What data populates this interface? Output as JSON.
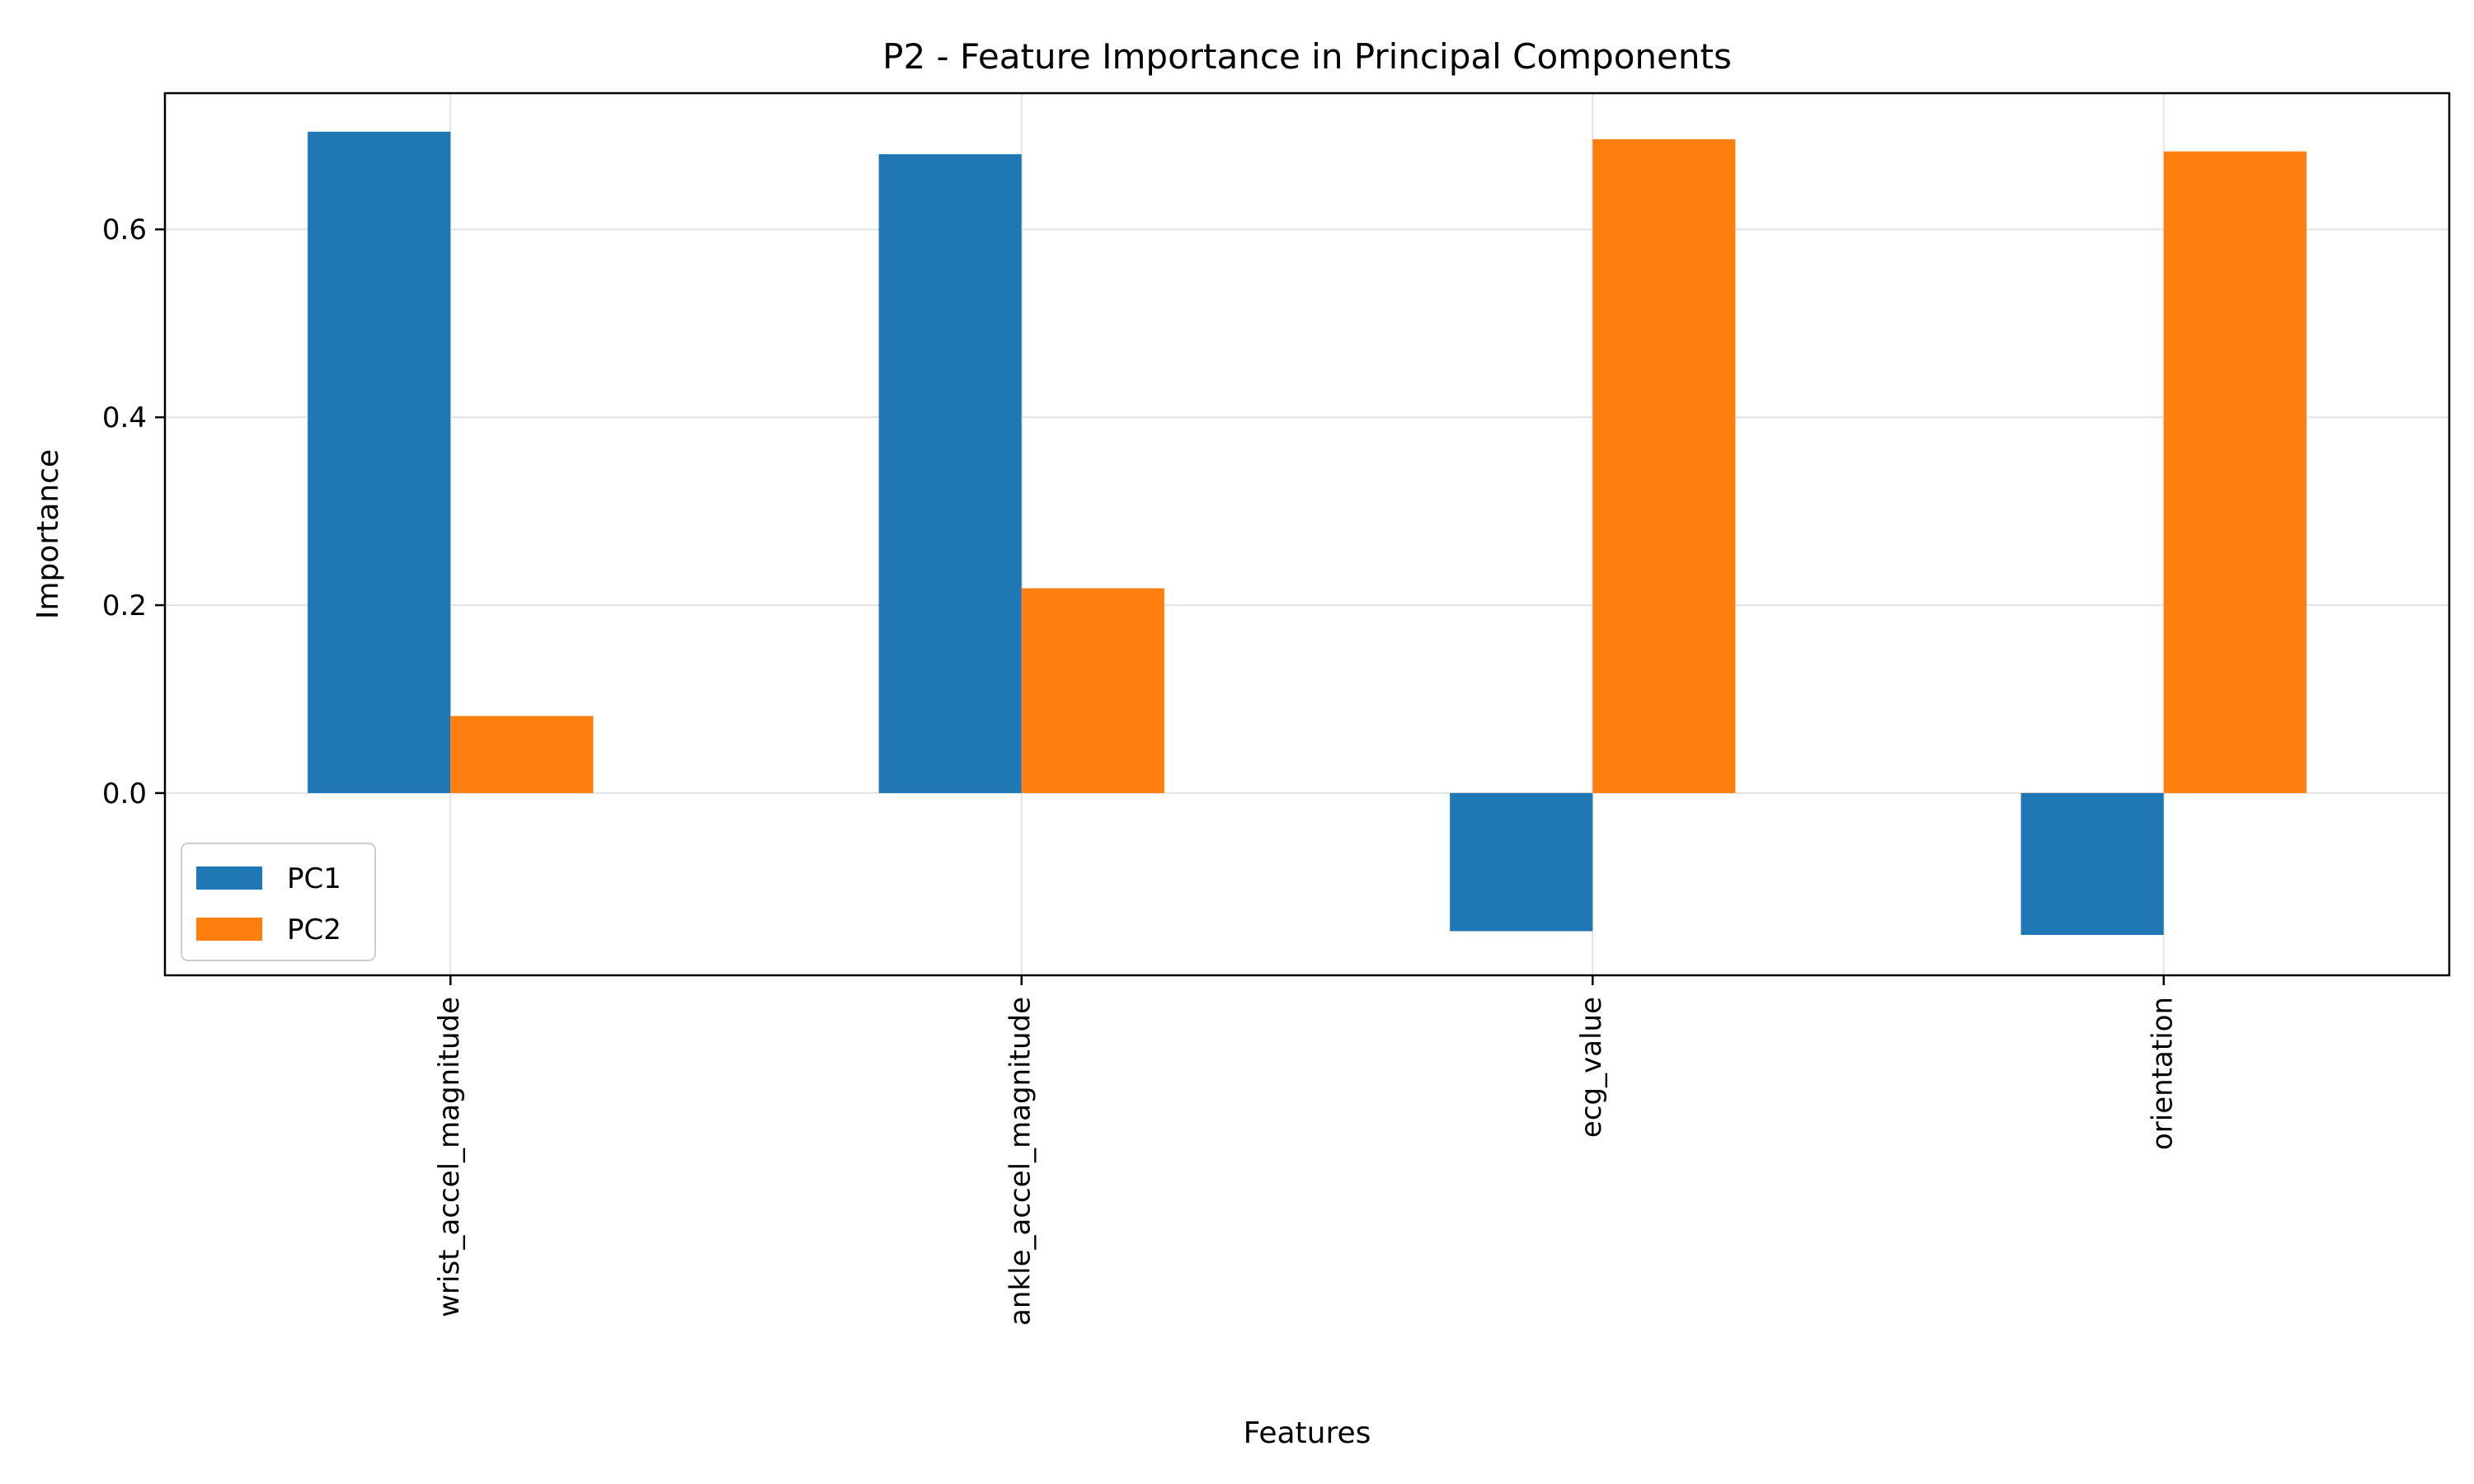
{
  "chart_data": {
    "type": "bar",
    "title": "P2 - Feature Importance in Principal Components",
    "xlabel": "Features",
    "ylabel": "Importance",
    "categories": [
      "wrist_accel_magnitude",
      "ankle_accel_magnitude",
      "ecg_value",
      "orientation"
    ],
    "series": [
      {
        "name": "PC1",
        "color": "#1f77b4",
        "values": [
          0.704,
          0.68,
          -0.147,
          -0.151
        ]
      },
      {
        "name": "PC2",
        "color": "#ff7f0e",
        "values": [
          0.082,
          0.218,
          0.696,
          0.683
        ]
      }
    ],
    "ylim": [
      -0.194,
      0.745
    ],
    "yticks": [
      0.0,
      0.2,
      0.4,
      0.6
    ],
    "ytick_labels": [
      "0.0",
      "0.2",
      "0.4",
      "0.6"
    ],
    "grid": true,
    "legend_position": "lower-left"
  }
}
